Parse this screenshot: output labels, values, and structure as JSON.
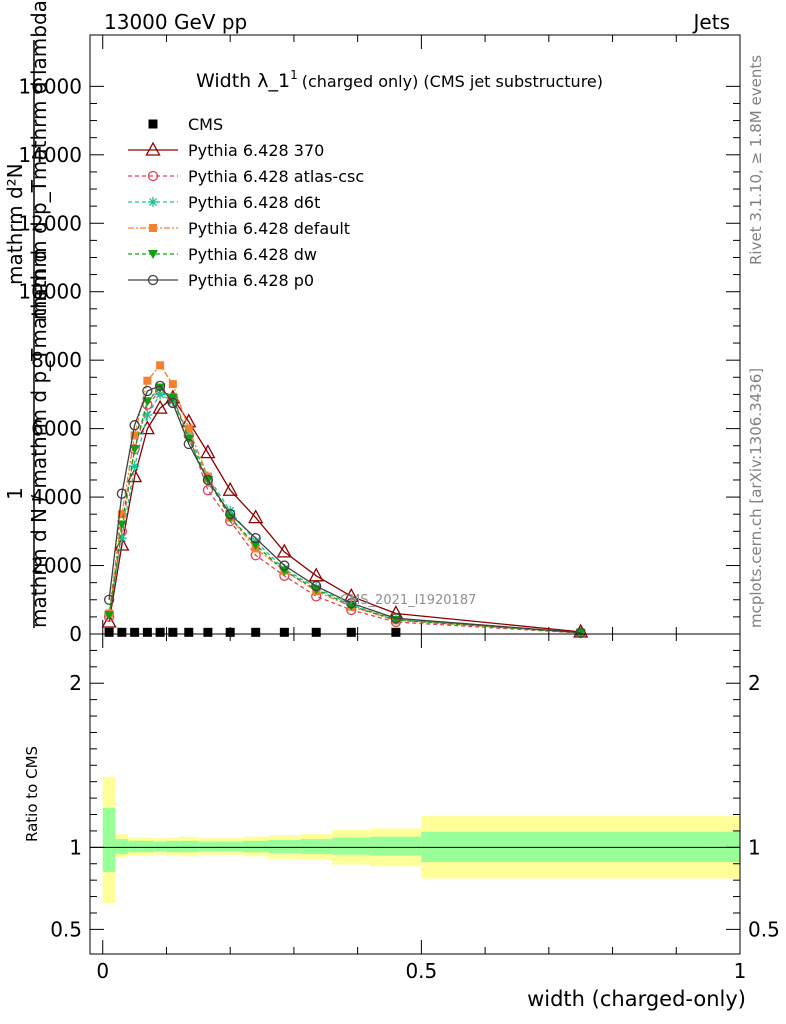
{
  "header": {
    "left": "13000 GeV pp",
    "right": "Jets"
  },
  "side_labels": {
    "rivet": "Rivet 3.1.10, ≥ 1.8M events",
    "mcplots": "mcplots.cern.ch [arXiv:1306.3436]"
  },
  "watermark": "CMS_2021_I1920187",
  "chart_data": [
    {
      "type": "line",
      "title": "Width λ_1",
      "title_sup": "1",
      "title_suffix": "(charged only) (CMS jet substructure)",
      "ylabel_top": "mathrm d²N",
      "ylabel_top2": "mathrm d p_Tmathrm d lambda",
      "ylabel_bottom": "mathrm d N / mathrm d p_Tmathrm d",
      "ylabel_one": "1",
      "xlim": [
        -0.02,
        1.0
      ],
      "ylim": [
        0,
        17500
      ],
      "yticks": [
        0,
        2000,
        4000,
        6000,
        8000,
        10000,
        12000,
        14000,
        16000
      ],
      "ytick_labels": [
        "0",
        "2000",
        "4000",
        "6000",
        "8000",
        "10000",
        "12000",
        "14000",
        "16000"
      ],
      "legend_position": "top-left",
      "cms_points": {
        "name": "CMS",
        "x": [
          0.01,
          0.03,
          0.05,
          0.07,
          0.09,
          0.11,
          0.135,
          0.165,
          0.2,
          0.24,
          0.285,
          0.335,
          0.39,
          0.46
        ],
        "y": [
          20,
          20,
          20,
          20,
          20,
          20,
          20,
          20,
          20,
          20,
          20,
          20,
          20,
          20
        ]
      },
      "series": [
        {
          "name": "Pythia 6.428 370",
          "color": "#8b0000",
          "dash": "",
          "marker": "triangle-open",
          "x": [
            0.01,
            0.03,
            0.05,
            0.07,
            0.09,
            0.11,
            0.135,
            0.165,
            0.2,
            0.24,
            0.285,
            0.335,
            0.39,
            0.46,
            0.75
          ],
          "y": [
            350,
            2600,
            4600,
            6000,
            6600,
            6900,
            6200,
            5300,
            4200,
            3400,
            2400,
            1700,
            1100,
            600,
            60
          ]
        },
        {
          "name": "Pythia 6.428 atlas-csc",
          "color": "#e0405a",
          "dash": "4,3",
          "marker": "circle-open",
          "x": [
            0.01,
            0.03,
            0.05,
            0.07,
            0.09,
            0.11,
            0.135,
            0.165,
            0.2,
            0.24,
            0.285,
            0.335,
            0.39,
            0.46,
            0.75
          ],
          "y": [
            500,
            3000,
            5400,
            6700,
            7100,
            6900,
            5800,
            4200,
            3300,
            2300,
            1700,
            1100,
            700,
            350,
            30
          ]
        },
        {
          "name": "Pythia 6.428 d6t",
          "color": "#20c090",
          "dash": "4,3",
          "marker": "star",
          "x": [
            0.01,
            0.03,
            0.05,
            0.07,
            0.09,
            0.11,
            0.135,
            0.165,
            0.2,
            0.24,
            0.285,
            0.335,
            0.39,
            0.46,
            0.75
          ],
          "y": [
            600,
            2800,
            4900,
            6400,
            7000,
            6800,
            5800,
            4600,
            3600,
            2700,
            1900,
            1350,
            850,
            420,
            35
          ]
        },
        {
          "name": "Pythia 6.428 default",
          "color": "#f58030",
          "dash": "6,2,2,2",
          "marker": "square",
          "x": [
            0.01,
            0.03,
            0.05,
            0.07,
            0.09,
            0.11,
            0.135,
            0.165,
            0.2,
            0.24,
            0.285,
            0.335,
            0.39,
            0.46,
            0.75
          ],
          "y": [
            600,
            3500,
            5800,
            7400,
            7850,
            7300,
            6000,
            4600,
            3400,
            2500,
            1850,
            1250,
            800,
            400,
            35
          ]
        },
        {
          "name": "Pythia 6.428 dw",
          "color": "#10a010",
          "dash": "4,3",
          "marker": "triangle-down",
          "x": [
            0.01,
            0.03,
            0.05,
            0.07,
            0.09,
            0.11,
            0.135,
            0.165,
            0.2,
            0.24,
            0.285,
            0.335,
            0.39,
            0.46,
            0.75
          ],
          "y": [
            550,
            3200,
            5400,
            6800,
            7200,
            6900,
            5700,
            4500,
            3400,
            2600,
            1850,
            1300,
            820,
            410,
            35
          ]
        },
        {
          "name": "Pythia 6.428 p0",
          "color": "#404040",
          "dash": "",
          "marker": "circle-open",
          "x": [
            0.01,
            0.03,
            0.05,
            0.07,
            0.09,
            0.11,
            0.135,
            0.165,
            0.2,
            0.24,
            0.285,
            0.335,
            0.39,
            0.46,
            0.75
          ],
          "y": [
            1000,
            4100,
            6100,
            7100,
            7250,
            6750,
            5550,
            4500,
            3500,
            2800,
            2000,
            1400,
            900,
            460,
            40
          ]
        }
      ]
    },
    {
      "type": "area",
      "ylabel": "Ratio to CMS",
      "xlabel": "width (charged-only)",
      "xlim": [
        -0.02,
        1.0
      ],
      "ylim": [
        0.35,
        2.3
      ],
      "yticks": [
        0.5,
        1,
        2
      ],
      "ytick_labels": [
        "0.5",
        "1",
        "2"
      ],
      "xticks": [
        0,
        0.5,
        1
      ],
      "xtick_labels": [
        "0",
        "0.5",
        "1"
      ],
      "bins": [
        {
          "lo": 0.0,
          "hi": 0.02,
          "inner": [
            0.85,
            1.24
          ],
          "outer": [
            0.66,
            1.43
          ]
        },
        {
          "lo": 0.02,
          "hi": 0.04,
          "inner": [
            0.96,
            1.05
          ],
          "outer": [
            0.94,
            1.08
          ]
        },
        {
          "lo": 0.04,
          "hi": 0.06,
          "inner": [
            0.97,
            1.04
          ],
          "outer": [
            0.95,
            1.06
          ]
        },
        {
          "lo": 0.06,
          "hi": 0.08,
          "inner": [
            0.97,
            1.04
          ],
          "outer": [
            0.95,
            1.06
          ]
        },
        {
          "lo": 0.08,
          "hi": 0.1,
          "inner": [
            0.975,
            1.035
          ],
          "outer": [
            0.955,
            1.055
          ]
        },
        {
          "lo": 0.1,
          "hi": 0.12,
          "inner": [
            0.97,
            1.04
          ],
          "outer": [
            0.95,
            1.06
          ]
        },
        {
          "lo": 0.12,
          "hi": 0.15,
          "inner": [
            0.97,
            1.04
          ],
          "outer": [
            0.945,
            1.065
          ]
        },
        {
          "lo": 0.15,
          "hi": 0.18,
          "inner": [
            0.975,
            1.035
          ],
          "outer": [
            0.955,
            1.055
          ]
        },
        {
          "lo": 0.18,
          "hi": 0.22,
          "inner": [
            0.975,
            1.035
          ],
          "outer": [
            0.955,
            1.055
          ]
        },
        {
          "lo": 0.22,
          "hi": 0.26,
          "inner": [
            0.97,
            1.04
          ],
          "outer": [
            0.945,
            1.065
          ]
        },
        {
          "lo": 0.26,
          "hi": 0.31,
          "inner": [
            0.965,
            1.045
          ],
          "outer": [
            0.93,
            1.075
          ]
        },
        {
          "lo": 0.31,
          "hi": 0.36,
          "inner": [
            0.96,
            1.05
          ],
          "outer": [
            0.925,
            1.08
          ]
        },
        {
          "lo": 0.36,
          "hi": 0.42,
          "inner": [
            0.955,
            1.06
          ],
          "outer": [
            0.895,
            1.105
          ]
        },
        {
          "lo": 0.42,
          "hi": 0.5,
          "inner": [
            0.95,
            1.065
          ],
          "outer": [
            0.885,
            1.115
          ]
        },
        {
          "lo": 0.5,
          "hi": 1.0,
          "inner": [
            0.91,
            1.095
          ],
          "outer": [
            0.81,
            1.19
          ]
        }
      ]
    }
  ]
}
